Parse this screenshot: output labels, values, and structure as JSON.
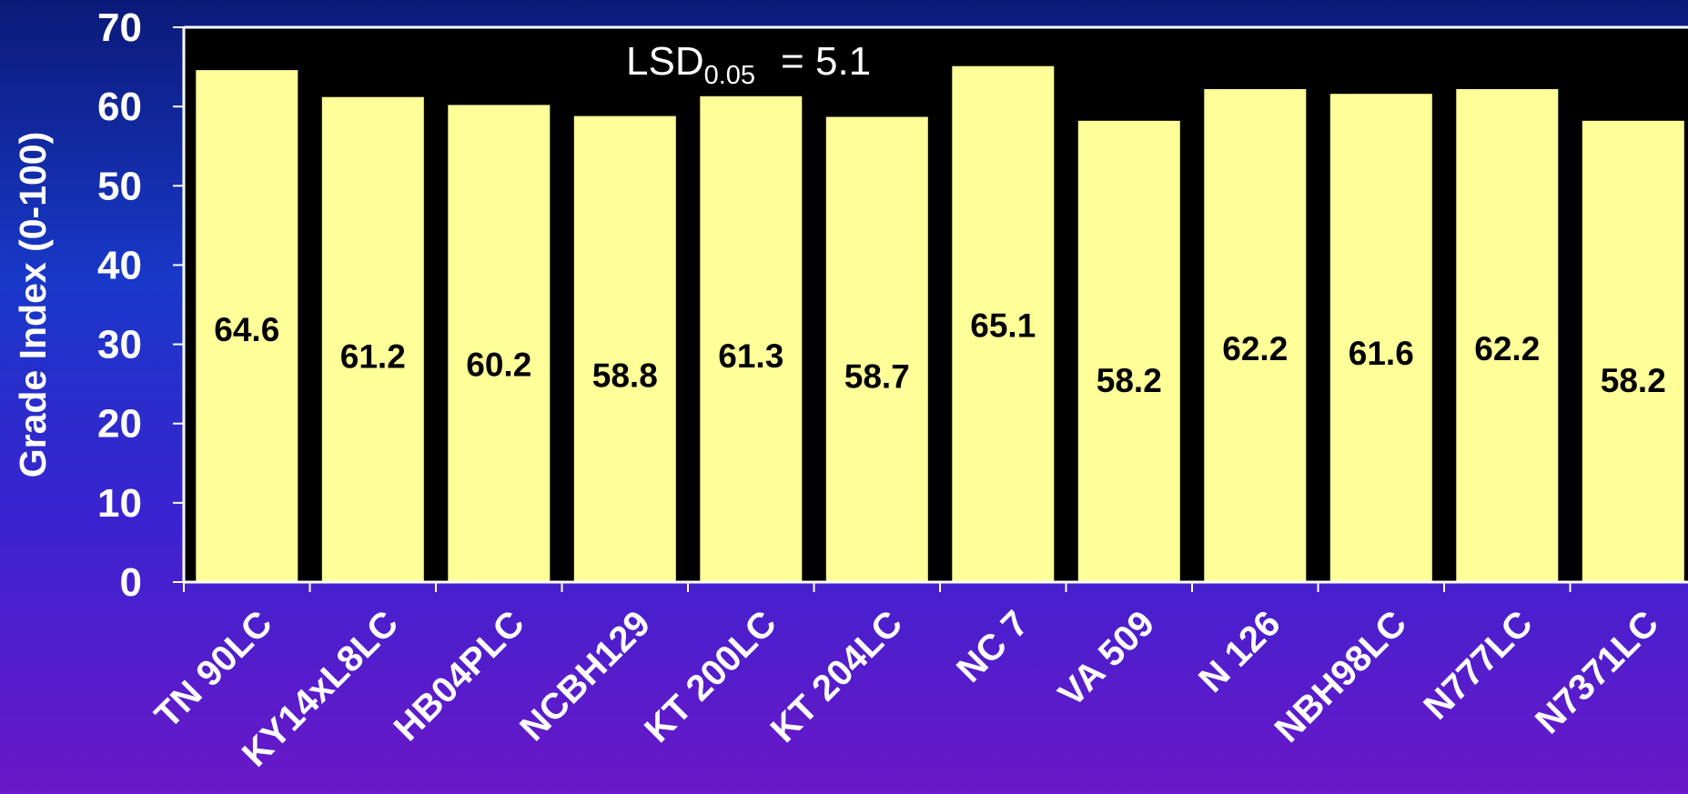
{
  "chart_data": {
    "type": "bar",
    "ylabel": "Grade Index (0-100)",
    "xlabel": "",
    "ylim": [
      0,
      70
    ],
    "yticks": [
      "0",
      "10",
      "20",
      "30",
      "40",
      "50",
      "60",
      "70"
    ],
    "categories": [
      "TN 90LC",
      "KY14xL8LC",
      "HB04PLC",
      "NCBH129",
      "KT 200LC",
      "KT 204LC",
      "NC 7",
      "VA 509",
      "N 126",
      "NBH98LC",
      "N777LC",
      "N7371LC"
    ],
    "values": [
      64.6,
      61.2,
      60.2,
      58.8,
      61.3,
      58.7,
      65.1,
      58.2,
      62.2,
      61.6,
      62.2,
      58.2
    ],
    "data_labels": [
      "64.6",
      "61.2",
      "60.2",
      "58.8",
      "61.3",
      "58.7",
      "65.1",
      "58.2",
      "62.2",
      "61.6",
      "62.2",
      "58.2"
    ],
    "annotation": {
      "main": "LSD",
      "subscript": "0.05",
      "value": "=  5.1"
    },
    "grid": false,
    "colors": {
      "bar_fill": "#ffff99",
      "plot_background": "#000000",
      "axis": "#ffffff",
      "text": "#ffffff",
      "data_label": "#000000"
    }
  }
}
